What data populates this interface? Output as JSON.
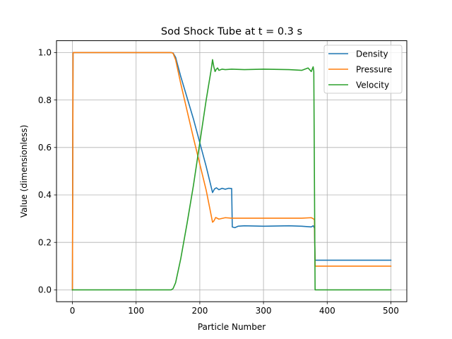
{
  "chart_data": {
    "type": "line",
    "title": "Sod Shock Tube at t = 0.3 s",
    "xlabel": "Particle Number",
    "ylabel": "Value (dimensionless)",
    "xlim": [
      -25,
      525
    ],
    "ylim": [
      -0.05,
      1.05
    ],
    "x_ticks": [
      0,
      100,
      200,
      300,
      400,
      500
    ],
    "y_ticks": [
      0.0,
      0.2,
      0.4,
      0.6,
      0.8,
      1.0
    ],
    "x_tick_labels": [
      "0",
      "100",
      "200",
      "300",
      "400",
      "500"
    ],
    "y_tick_labels": [
      "0.0",
      "0.2",
      "0.4",
      "0.6",
      "0.8",
      "1.0"
    ],
    "grid": true,
    "legend_position": "top-right",
    "series": [
      {
        "name": "Density",
        "color": "#1f77b4",
        "x": [
          0,
          1,
          2,
          155,
          158,
          162,
          170,
          190,
          210,
          220,
          223,
          226,
          230,
          235,
          240,
          245,
          250,
          251,
          255,
          260,
          270,
          300,
          340,
          360,
          375,
          378,
          380,
          381,
          500
        ],
        "y": [
          0.0,
          1.0,
          1.0,
          1.0,
          0.998,
          0.98,
          0.9,
          0.72,
          0.52,
          0.41,
          0.425,
          0.43,
          0.422,
          0.428,
          0.424,
          0.428,
          0.427,
          0.265,
          0.262,
          0.268,
          0.27,
          0.268,
          0.27,
          0.268,
          0.265,
          0.27,
          0.26,
          0.125,
          0.125
        ]
      },
      {
        "name": "Pressure",
        "color": "#ff7f0e",
        "x": [
          0,
          1,
          2,
          155,
          158,
          162,
          170,
          190,
          210,
          220,
          222,
          225,
          230,
          240,
          250,
          270,
          300,
          340,
          360,
          375,
          378,
          380,
          381,
          500
        ],
        "y": [
          0.0,
          1.0,
          1.0,
          1.0,
          0.997,
          0.97,
          0.87,
          0.64,
          0.42,
          0.285,
          0.29,
          0.305,
          0.298,
          0.304,
          0.302,
          0.302,
          0.302,
          0.302,
          0.302,
          0.304,
          0.3,
          0.295,
          0.1,
          0.1
        ]
      },
      {
        "name": "Velocity",
        "color": "#2ca02c",
        "x": [
          0,
          155,
          158,
          162,
          170,
          180,
          190,
          200,
          210,
          218,
          220,
          222,
          224,
          226,
          228,
          230,
          235,
          240,
          250,
          270,
          300,
          340,
          360,
          370,
          375,
          378,
          379,
          381,
          500
        ],
        "y": [
          0.0,
          0.0,
          0.005,
          0.03,
          0.13,
          0.28,
          0.44,
          0.62,
          0.8,
          0.93,
          0.97,
          0.94,
          0.92,
          0.93,
          0.935,
          0.925,
          0.93,
          0.928,
          0.93,
          0.928,
          0.93,
          0.928,
          0.925,
          0.935,
          0.92,
          0.94,
          0.92,
          0.0,
          0.0
        ]
      }
    ]
  }
}
